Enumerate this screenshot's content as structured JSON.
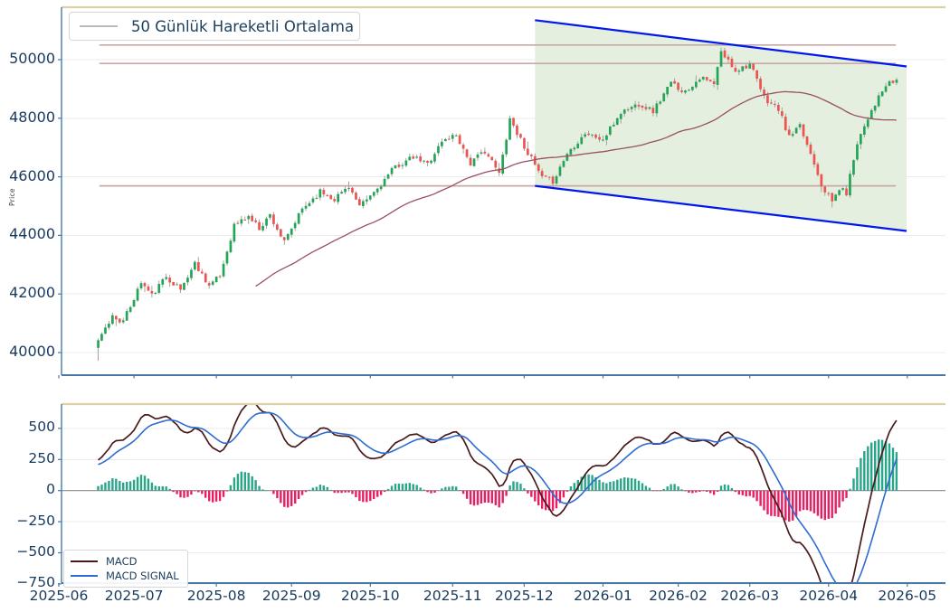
{
  "colors": {
    "background": "#ffffff",
    "tick_label": "#17395e",
    "spine_blue": "#4878a8",
    "spine_tan": "#ddd0a6",
    "grid": "#ebebeb",
    "candle_up": "#22a556",
    "candle_down": "#ef5350",
    "wick": "#9b9b9b",
    "ma_line": "#9a4f63",
    "level_line": "#c9a8a6",
    "channel_line": "#0018ee",
    "channel_fill": "#e4efdf",
    "macd_line": "#4a1a1a",
    "signal_line": "#2e6cd3",
    "hist_positive": "#29a58a",
    "hist_negative": "#e91e63",
    "zero_line": "#8c8c8c",
    "legend_ma_sample": "#b9b9b9"
  },
  "chart_data": {
    "type": "candlestick+macd",
    "x_axis": {
      "ticks": [
        {
          "label": "2025-06",
          "day": 0
        },
        {
          "label": "2025-07",
          "day": 21
        },
        {
          "label": "2025-08",
          "day": 44
        },
        {
          "label": "2025-09",
          "day": 65
        },
        {
          "label": "2025-10",
          "day": 87
        },
        {
          "label": "2025-11",
          "day": 110
        },
        {
          "label": "2025-12",
          "day": 130
        },
        {
          "label": "2026-01",
          "day": 152
        },
        {
          "label": "2026-02",
          "day": 173
        },
        {
          "label": "2026-03",
          "day": 193
        },
        {
          "label": "2026-04",
          "day": 215
        },
        {
          "label": "2026-05",
          "day": 237
        }
      ]
    },
    "price_panel": {
      "ylabel": "Price",
      "legend_label": "50 Günlük Hareketli Ortalama",
      "y_ticks": [
        {
          "label": "40000",
          "value": 40000
        },
        {
          "label": "42000",
          "value": 42000
        },
        {
          "label": "44000",
          "value": 44000
        },
        {
          "label": "46000",
          "value": 46000
        },
        {
          "label": "48000",
          "value": 48000
        },
        {
          "label": "50000",
          "value": 50000
        }
      ],
      "y_range": [
        39250,
        51550
      ],
      "ma_window": 50,
      "ma_draw_from": 44,
      "horizontal_levels": [
        50500,
        49870,
        45690
      ],
      "level_span_candles": [
        0.3,
        222.8
      ],
      "channel": {
        "start_candle": 122,
        "end_candle": 225.8,
        "top_start_price": 51350,
        "top_end_price": 49770,
        "bottom_start_price": 45690,
        "bottom_end_price": 44150
      },
      "candles_n": 224,
      "first_day_offset": 11,
      "noise_seed": 11,
      "noise_amp": 100,
      "warmup": {
        "n": 25,
        "start": 39200
      },
      "close_anchors": [
        [
          0,
          40350
        ],
        [
          4,
          41250
        ],
        [
          7,
          41050
        ],
        [
          12,
          42400
        ],
        [
          15,
          41950
        ],
        [
          19,
          42600
        ],
        [
          23,
          42150
        ],
        [
          27,
          43050
        ],
        [
          31,
          42300
        ],
        [
          34,
          42600
        ],
        [
          38,
          44350
        ],
        [
          42,
          44650
        ],
        [
          45,
          44250
        ],
        [
          48,
          44700
        ],
        [
          52,
          43750
        ],
        [
          57,
          44900
        ],
        [
          62,
          45500
        ],
        [
          66,
          45250
        ],
        [
          70,
          45700
        ],
        [
          73,
          44950
        ],
        [
          78,
          45600
        ],
        [
          83,
          46350
        ],
        [
          88,
          46650
        ],
        [
          92,
          46450
        ],
        [
          96,
          47200
        ],
        [
          100,
          47450
        ],
        [
          104,
          46450
        ],
        [
          108,
          46900
        ],
        [
          112,
          46100
        ],
        [
          115,
          48000
        ],
        [
          117,
          47500
        ],
        [
          121,
          46600
        ],
        [
          124,
          45950
        ],
        [
          127,
          45850
        ],
        [
          131,
          46800
        ],
        [
          136,
          47500
        ],
        [
          141,
          47250
        ],
        [
          146,
          48200
        ],
        [
          151,
          48500
        ],
        [
          155,
          48250
        ],
        [
          160,
          49200
        ],
        [
          164,
          48900
        ],
        [
          168,
          49400
        ],
        [
          172,
          49150
        ],
        [
          174,
          50250
        ],
        [
          178,
          49650
        ],
        [
          182,
          49850
        ],
        [
          186,
          48700
        ],
        [
          190,
          48300
        ],
        [
          193,
          47350
        ],
        [
          196,
          47700
        ],
        [
          200,
          46500
        ],
        [
          202,
          45750
        ],
        [
          205,
          45150
        ],
        [
          207,
          45600
        ],
        [
          209,
          45450
        ],
        [
          212,
          47200
        ],
        [
          216,
          48300
        ],
        [
          220,
          49100
        ],
        [
          223,
          49300
        ]
      ]
    },
    "macd_panel": {
      "y_ticks": [
        {
          "label": "500",
          "value": 500
        },
        {
          "label": "250",
          "value": 250
        },
        {
          "label": "0",
          "value": 0
        },
        {
          "label": "−250",
          "value": -250
        },
        {
          "label": "−500",
          "value": -500
        },
        {
          "label": "−750",
          "value": -750
        }
      ],
      "params": {
        "fast": 12,
        "slow": 26,
        "signal": 9
      },
      "legend": [
        {
          "label": "MACD"
        },
        {
          "label": "MACD SIGNAL"
        }
      ]
    }
  }
}
